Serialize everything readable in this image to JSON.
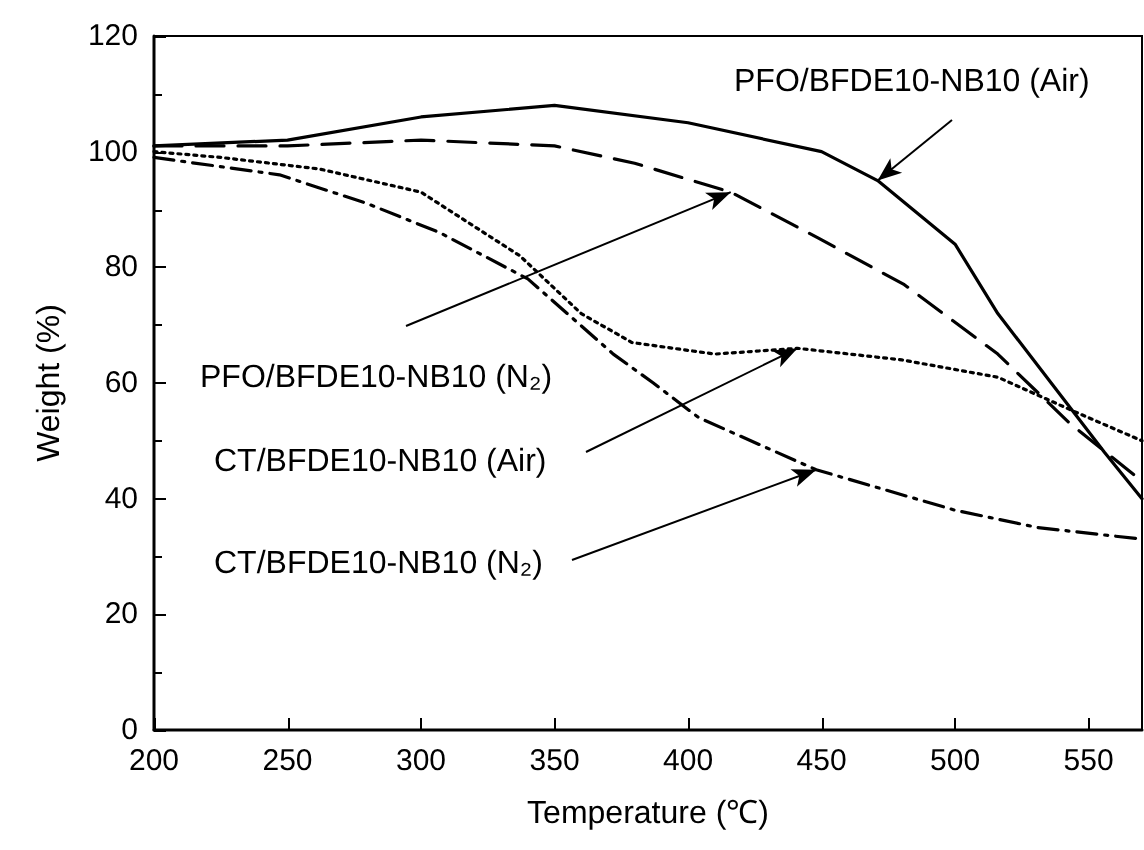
{
  "chart_data": {
    "type": "line",
    "xlabel": "Temperature (℃)",
    "ylabel": "Weight (%)",
    "xlim": [
      200,
      570
    ],
    "xticks": [
      200,
      250,
      300,
      350,
      400,
      450,
      500,
      550
    ],
    "ylim": [
      0,
      120
    ],
    "yticks": [
      0,
      20,
      40,
      60,
      80,
      100,
      120
    ],
    "grid": false,
    "marker": "none",
    "annotations": [
      {
        "text": "PFO/BFDE10-NB10 (Air)",
        "x": 471,
        "y": 95
      },
      {
        "text": "PFO/BFDE10-NB10 (N₂)",
        "x": 416,
        "y": 93
      },
      {
        "text": "CT/BFDE10-NB10 (Air)",
        "x": 441,
        "y": 66
      },
      {
        "text": "CT/BFDE10-NB10 (N₂)",
        "x": 448,
        "y": 45
      }
    ],
    "series": [
      {
        "color": "#000000",
        "line_style": "solid",
        "x": [
          200,
          250,
          300,
          350,
          400,
          450,
          471,
          500,
          516,
          536,
          556,
          570
        ],
        "values": [
          101,
          102,
          106,
          108,
          105,
          100,
          95,
          84,
          72,
          60,
          48,
          40
        ]
      },
      {
        "color": "#000000",
        "line_style": "dashed",
        "x": [
          200,
          250,
          300,
          350,
          380,
          416,
          449,
          481,
          516,
          543,
          570
        ],
        "values": [
          101,
          101,
          102,
          101,
          98,
          93,
          85,
          77,
          65,
          53,
          43
        ]
      },
      {
        "color": "#000000",
        "line_style": "dotted",
        "x": [
          200,
          225,
          262,
          300,
          337,
          360,
          379,
          410,
          441,
          480,
          516,
          545,
          570
        ],
        "values": [
          100,
          99,
          97,
          93,
          82,
          72,
          67,
          65,
          66,
          64,
          61,
          55,
          50
        ]
      },
      {
        "color": "#000000",
        "line_style": "dashdot",
        "x": [
          200,
          247,
          280,
          307,
          340,
          372,
          387,
          404,
          448,
          500,
          531,
          570
        ],
        "values": [
          99,
          96,
          91,
          86,
          78,
          65,
          60,
          54,
          45,
          38,
          35,
          33
        ]
      }
    ]
  }
}
